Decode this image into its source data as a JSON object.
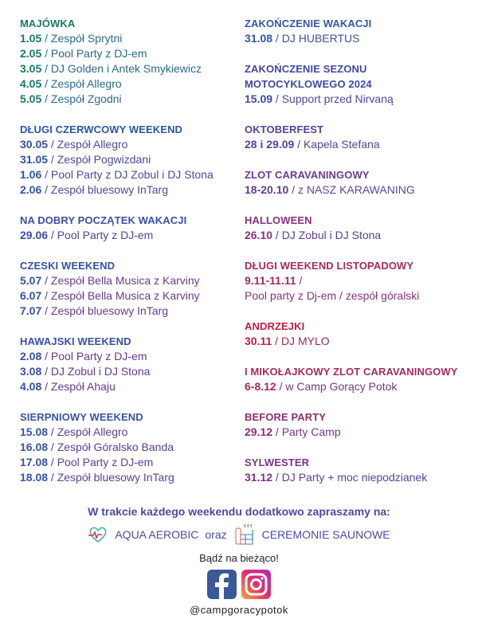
{
  "left_column": [
    {
      "title": "MAJÓWKA",
      "color": "#177a66",
      "text_color": "#2a6a8a",
      "items": [
        {
          "date": "1.05",
          "text": "Zespół Sprytni"
        },
        {
          "date": "2.05",
          "text": "Pool Party z DJ-em"
        },
        {
          "date": "3.05",
          "text": "DJ Golden i Antek Smykiewicz"
        },
        {
          "date": "4.05",
          "text": "Zespół Allegro"
        },
        {
          "date": "5.05",
          "text": "Zespół Zgodni"
        }
      ]
    },
    {
      "title": "DŁUGI CZERWCOWY WEEKEND",
      "color": "#2d55a5",
      "text_color": "#4a4aa0",
      "items": [
        {
          "date": "30.05",
          "text": "Zespół Allegro"
        },
        {
          "date": "31.05",
          "text": "Zespół Pogwizdani"
        },
        {
          "date": "1.06",
          "text": "Pool Party z DJ Zobul i DJ Stona"
        },
        {
          "date": "2.06",
          "text": "Zespół bluesowy InTarg"
        }
      ]
    },
    {
      "title": "NA DOBRY POCZĄTEK WAKACJI",
      "color": "#3d4da5",
      "text_color": "#5a3e9a",
      "items": [
        {
          "date": "29.06",
          "text": "Pool Party z DJ-em"
        }
      ]
    },
    {
      "title": "CZESKI WEEKEND",
      "color": "#3550a8",
      "text_color": "#6a3a8e",
      "items": [
        {
          "date": "5.07",
          "text": "Zespół Bella Musica z Karviny"
        },
        {
          "date": "6.07",
          "text": "Zespół Bella Musica z Karviny"
        },
        {
          "date": "7.07",
          "text": "Zespół bluesowy InTarg"
        }
      ]
    },
    {
      "title": "HAWAJSKI WEEKEND",
      "color": "#3a4ea8",
      "text_color": "#603a95",
      "items": [
        {
          "date": "2.08",
          "text": "Pool Party z DJ-em"
        },
        {
          "date": "3.08",
          "text": "DJ Zobul i DJ Stona"
        },
        {
          "date": "4.08",
          "text": "Zespół Ahaju"
        }
      ]
    },
    {
      "title": "SIERPNIOWY WEEKEND",
      "color": "#3a52a8",
      "text_color": "#5e3c98",
      "items": [
        {
          "date": "15.08",
          "text": "Zespół Allegro"
        },
        {
          "date": "16.08",
          "text": "Zespół Góralsko Banda"
        },
        {
          "date": "17.08",
          "text": "Pool Party z DJ-em"
        },
        {
          "date": "18.08",
          "text": "Zespół bluesowy InTarg"
        }
      ]
    }
  ],
  "right_column": [
    {
      "title": "ZAKOŃCZENIE WAKACJI",
      "color": "#3457a8",
      "text_color": "#3f4fa5",
      "items": [
        {
          "date": "31.08",
          "text": "DJ HUBERTUS"
        }
      ]
    },
    {
      "title": "ZAKOŃCZENIE SEZONU",
      "title2": "MOTOCYKLOWEGO 2024",
      "color": "#4048a5",
      "text_color": "#4a48a5",
      "items": [
        {
          "date": "15.09",
          "text": "Support przed Nirvaną"
        }
      ]
    },
    {
      "title": "OKTOBERFEST",
      "color": "#5540a0",
      "text_color": "#5a4098",
      "items": [
        {
          "date": "28 i 29.09",
          "text": "Kapela Stefana"
        }
      ]
    },
    {
      "title": "ZLOT CARAVANINGOWY",
      "color": "#6a3a95",
      "text_color": "#5a46a0",
      "items": [
        {
          "date": "18-20.10",
          "text": "z NASZ KARAWANING"
        }
      ]
    },
    {
      "title": "HALLOWEEN",
      "color": "#8a3080",
      "text_color": "#5a4098",
      "items": [
        {
          "date": "26.10",
          "text": "DJ Zobul i DJ Stona"
        }
      ]
    },
    {
      "title": "DŁUGI WEEKEND LISTOPADOWY",
      "color": "#a82a5e",
      "text_color": "#8a3478",
      "items": [
        {
          "date": "9.11-11.11",
          "text": ""
        }
      ],
      "extra_line": "Pool party z Dj-em / zespół góralski"
    },
    {
      "title": "ANDRZEJKI",
      "color": "#c41e3c",
      "text_color": "#9a2a5a",
      "items": [
        {
          "date": "30.11",
          "text": "DJ MYLO"
        }
      ]
    },
    {
      "title": "I MIKOŁAJKOWY  ZLOT CARAVANINGOWY",
      "color": "#a82a5a",
      "text_color": "#7a3582",
      "items": [
        {
          "date": "6-8.12",
          "text": "w Camp Gorący Potok"
        }
      ]
    },
    {
      "title": "BEFORE PARTY",
      "color": "#8e2f6e",
      "text_color": "#70388a",
      "items": [
        {
          "date": "29.12",
          "text": "Party Camp"
        }
      ]
    },
    {
      "title": "SYLWESTER",
      "color": "#7a3585",
      "text_color": "#5a4098",
      "items": [
        {
          "date": "31.12",
          "text": "DJ Party + moc niepodzianek"
        }
      ]
    }
  ],
  "footer": {
    "promo": "W trakcie każdego weekendu dodatkowo zapraszamy na:",
    "aqua": "AQUA AEROBIC",
    "oraz": "oraz",
    "sauna": "CEREMONIE SAUNOWE",
    "stay": "Bądź na bieżąco!",
    "handle": "@campgoracypotok",
    "icons": [
      "heart-pulse-icon",
      "sauna-icon",
      "facebook-icon",
      "instagram-icon"
    ]
  }
}
